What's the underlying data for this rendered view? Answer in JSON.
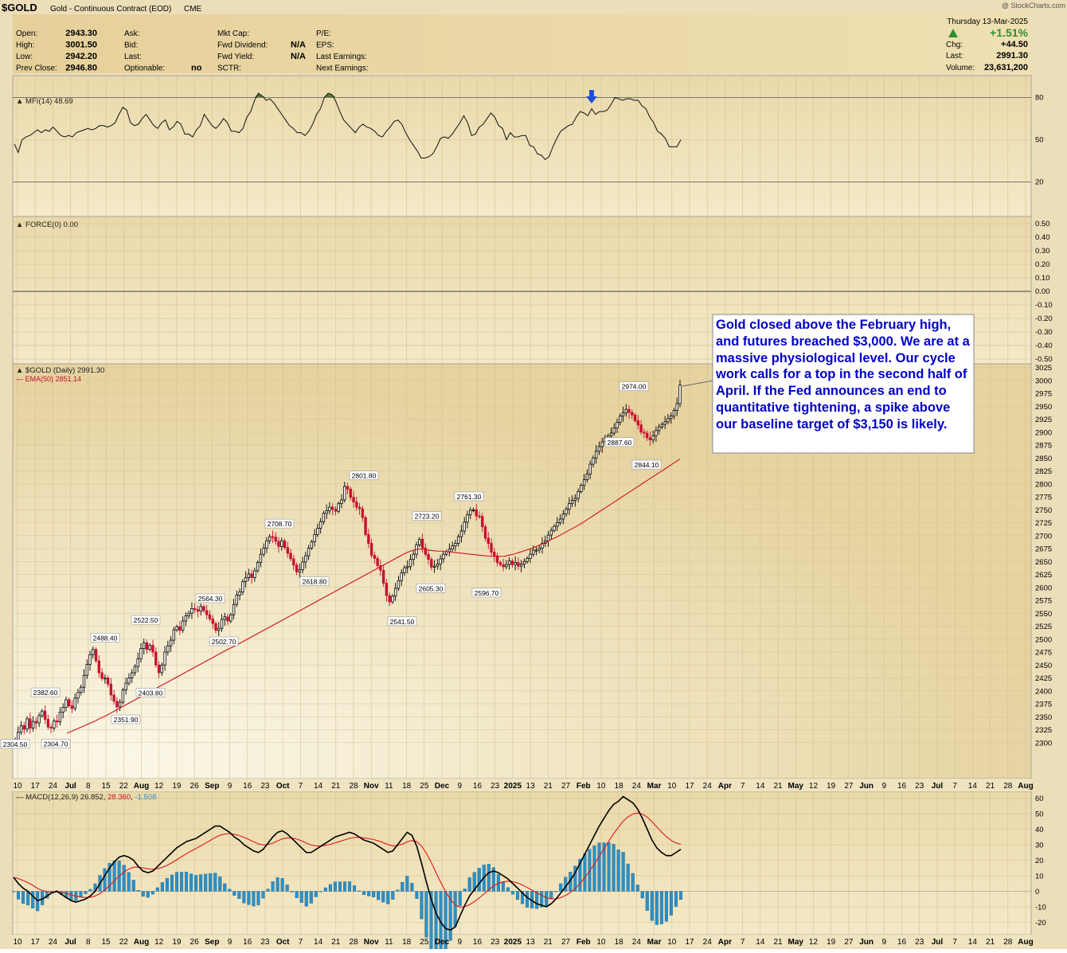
{
  "header": {
    "symbol": "$GOLD",
    "desc": "Gold - Continuous Contract (EOD)",
    "exchange": "CME",
    "source": "@ StockCharts.com",
    "date": "Thursday  13-Mar-2025",
    "pct": "+1.51%",
    "chg_label": "Chg:",
    "chg": "+44.50",
    "last_label": "Last:",
    "last": "2991.30",
    "vol_label": "Volume:",
    "vol": "23,631,200",
    "col1": [
      [
        "Open:",
        "2943.30"
      ],
      [
        "High:",
        "3001.50"
      ],
      [
        "Low:",
        "2942.20"
      ],
      [
        "Prev Close:",
        "2946.80"
      ]
    ],
    "col2": [
      [
        "Ask:",
        ""
      ],
      [
        "Bid:",
        ""
      ],
      [
        "Last:",
        ""
      ],
      [
        "Optionable:",
        "no"
      ]
    ],
    "col3": [
      [
        "Mkt Cap:",
        ""
      ],
      [
        "Fwd Dividend:",
        "N/A"
      ],
      [
        "Fwd Yield:",
        "N/A"
      ],
      [
        "SCTR:",
        ""
      ]
    ],
    "col4": [
      [
        "P/E:",
        ""
      ],
      [
        "EPS:",
        ""
      ],
      [
        "Last Earnings:",
        ""
      ],
      [
        "Next Earnings:",
        ""
      ]
    ]
  },
  "panels": {
    "mfi_label": "MFI(14) 48.69",
    "force_label": "FORCE(0) 0.00",
    "price_label": "$GOLD (Daily) 2991.30",
    "ema_label": "EMA(50) 2851.14",
    "macd_label": "MACD(12,26,9)",
    "macd_v1": "26.852",
    "macd_v2": "28.360",
    "macd_v3": "-1.508"
  },
  "annotation": "Gold closed above the February high, and futures breached $3,000. We are at a massive physiological level. Our cycle work calls for a top in the second half of April. If the Fed announces an end to quantitative tightening, a spike above our baseline target of $3,150 is likely.",
  "colors": {
    "bg_outer": "#e9d5a4",
    "up": "#000000",
    "down": "#c8102e",
    "ema": "#d0101e",
    "hist": "#2d8fc4",
    "annotation_text": "#0000c8",
    "mfi_fill": "#5b7a35",
    "arrow": "#1f4fd8"
  },
  "chart_data": [
    {
      "type": "line",
      "name": "MFI(14)",
      "ylim": [
        0,
        100
      ],
      "y_ticks": [
        20,
        50,
        80
      ],
      "values": [
        47,
        41,
        50,
        52,
        53,
        55,
        57,
        55,
        57,
        56,
        59,
        56,
        53,
        52,
        53,
        52,
        55,
        56,
        57,
        58,
        57,
        58,
        60,
        60,
        59,
        60,
        62,
        68,
        73,
        71,
        62,
        60,
        61,
        65,
        68,
        64,
        60,
        58,
        62,
        64,
        57,
        59,
        63,
        61,
        54,
        54,
        52,
        57,
        60,
        68,
        64,
        60,
        58,
        61,
        65,
        62,
        56,
        56,
        55,
        58,
        66,
        70,
        78,
        83,
        81,
        78,
        79,
        76,
        72,
        68,
        64,
        60,
        58,
        55,
        55,
        53,
        56,
        61,
        68,
        72,
        80,
        83,
        82,
        77,
        70,
        64,
        61,
        58,
        55,
        59,
        61,
        59,
        58,
        56,
        53,
        52,
        56,
        59,
        63,
        64,
        61,
        55,
        50,
        46,
        42,
        37,
        37,
        38,
        40,
        45,
        51,
        52,
        51,
        54,
        58,
        62,
        67,
        62,
        53,
        54,
        59,
        61,
        65,
        69,
        66,
        60,
        58,
        50,
        55,
        52,
        52,
        53,
        53,
        46,
        45,
        40,
        39,
        36,
        38,
        45,
        51,
        56,
        58,
        60,
        61,
        66,
        70,
        69,
        67,
        72,
        68,
        70,
        70,
        71,
        75,
        80,
        79,
        78,
        79,
        79,
        78,
        78,
        74,
        72,
        66,
        62,
        56,
        54,
        51,
        45,
        45,
        45,
        50
      ]
    },
    {
      "type": "line",
      "name": "FORCE(0)",
      "ylim": [
        -0.5,
        0.5
      ],
      "y_ticks": [
        0.5,
        0.4,
        0.3,
        0.2,
        0.1,
        0.0,
        -0.1,
        -0.2,
        -0.3,
        -0.4,
        -0.5
      ],
      "values": [
        0
      ]
    },
    {
      "type": "candlestick",
      "name": "$GOLD (Daily)",
      "ylim": [
        2290,
        3030
      ],
      "y_ticks": [
        3025,
        3000,
        2975,
        2950,
        2925,
        2900,
        2875,
        2850,
        2825,
        2800,
        2775,
        2750,
        2725,
        2700,
        2675,
        2650,
        2625,
        2600,
        2575,
        2550,
        2525,
        2500,
        2475,
        2450,
        2425,
        2400,
        2375,
        2350,
        2325,
        2300
      ],
      "close": [
        2306,
        2320,
        2333,
        2326,
        2346,
        2328,
        2341,
        2338,
        2352,
        2361,
        2345,
        2330,
        2328,
        2342,
        2340,
        2359,
        2368,
        2383,
        2371,
        2366,
        2386,
        2397,
        2407,
        2430,
        2451,
        2470,
        2480,
        2458,
        2435,
        2424,
        2425,
        2413,
        2392,
        2380,
        2369,
        2378,
        2402,
        2415,
        2425,
        2435,
        2447,
        2462,
        2482,
        2493,
        2480,
        2488,
        2475,
        2450,
        2435,
        2450,
        2475,
        2487,
        2498,
        2518,
        2524,
        2517,
        2535,
        2545,
        2550,
        2559,
        2557,
        2554,
        2563,
        2555,
        2547,
        2539,
        2530,
        2517,
        2521,
        2538,
        2543,
        2535,
        2547,
        2567,
        2585,
        2591,
        2611,
        2619,
        2626,
        2619,
        2632,
        2648,
        2664,
        2676,
        2690,
        2698,
        2697,
        2689,
        2679,
        2690,
        2677,
        2666,
        2655,
        2643,
        2630,
        2634,
        2649,
        2661,
        2676,
        2688,
        2702,
        2714,
        2727,
        2743,
        2748,
        2755,
        2751,
        2747,
        2762,
        2769,
        2795,
        2790,
        2774,
        2765,
        2755,
        2752,
        2735,
        2702,
        2685,
        2662,
        2656,
        2642,
        2633,
        2608,
        2584,
        2572,
        2583,
        2598,
        2613,
        2628,
        2638,
        2640,
        2654,
        2664,
        2682,
        2693,
        2676,
        2664,
        2654,
        2639,
        2641,
        2645,
        2655,
        2664,
        2669,
        2674,
        2680,
        2685,
        2698,
        2709,
        2726,
        2740,
        2749,
        2750,
        2738,
        2737,
        2717,
        2695,
        2685,
        2668,
        2661,
        2648,
        2644,
        2640,
        2644,
        2651,
        2644,
        2648,
        2641,
        2645,
        2650,
        2656,
        2664,
        2672,
        2672,
        2676,
        2685,
        2690,
        2701,
        2710,
        2718,
        2725,
        2732,
        2742,
        2751,
        2762,
        2768,
        2772,
        2785,
        2797,
        2808,
        2819,
        2838,
        2850,
        2863,
        2872,
        2881,
        2889,
        2893,
        2898,
        2908,
        2919,
        2931,
        2937,
        2944,
        2938,
        2933,
        2922,
        2914,
        2900,
        2898,
        2889,
        2885,
        2893,
        2903,
        2910,
        2915,
        2920,
        2926,
        2931,
        2942,
        2955,
        2991
      ],
      "labels": [
        {
          "text": "2304.50",
          "value": 2304.5
        },
        {
          "text": "2382.60",
          "value": 2382.6
        },
        {
          "text": "2304.70",
          "value": 2304.7
        },
        {
          "text": "2488.40",
          "value": 2488.4
        },
        {
          "text": "2351.90",
          "value": 2351.9
        },
        {
          "text": "2522.50",
          "value": 2522.5
        },
        {
          "text": "2403.80",
          "value": 2403.8
        },
        {
          "text": "2564.30",
          "value": 2564.3
        },
        {
          "text": "2502.70",
          "value": 2502.7
        },
        {
          "text": "2708.70",
          "value": 2708.7
        },
        {
          "text": "2618.80",
          "value": 2618.8
        },
        {
          "text": "2801.80",
          "value": 2801.8
        },
        {
          "text": "2541.50",
          "value": 2541.5
        },
        {
          "text": "2723.20",
          "value": 2723.2
        },
        {
          "text": "2605.30",
          "value": 2605.3
        },
        {
          "text": "2761.30",
          "value": 2761.3
        },
        {
          "text": "2596.70",
          "value": 2596.7
        },
        {
          "text": "2887.60",
          "value": 2887.6
        },
        {
          "text": "2974.00",
          "value": 2974.0
        },
        {
          "text": "2844.10",
          "value": 2844.1
        }
      ]
    },
    {
      "type": "line",
      "name": "EMA(50)",
      "values": [
        2318,
        2322,
        2326,
        2330,
        2334,
        2338,
        2342,
        2347,
        2351,
        2356,
        2361,
        2366,
        2371,
        2376,
        2381,
        2386,
        2391,
        2396,
        2401,
        2406,
        2411,
        2416,
        2421,
        2426,
        2431,
        2436,
        2441,
        2446,
        2451,
        2456,
        2461,
        2466,
        2471,
        2476,
        2481,
        2485,
        2490,
        2495,
        2500,
        2505,
        2510,
        2515,
        2520,
        2525,
        2530,
        2535,
        2540,
        2545,
        2550,
        2555,
        2560,
        2565,
        2570,
        2575,
        2580,
        2585,
        2590,
        2595,
        2600,
        2605,
        2610,
        2615,
        2620,
        2625,
        2630,
        2635,
        2640,
        2645,
        2650,
        2655,
        2660,
        2665,
        2669,
        2672,
        2674,
        2674,
        2672,
        2671,
        2670,
        2670,
        2669,
        2668,
        2667,
        2666,
        2665,
        2664,
        2663,
        2662,
        2661,
        2660,
        2660,
        2660,
        2660,
        2662,
        2664,
        2667,
        2670,
        2673,
        2676,
        2680,
        2684,
        2688,
        2693,
        2697,
        2702,
        2707,
        2712,
        2717,
        2722,
        2728,
        2734,
        2740,
        2746,
        2752,
        2758,
        2764,
        2770,
        2776,
        2782,
        2788,
        2794,
        2800,
        2806,
        2812,
        2818,
        2824,
        2830,
        2836,
        2842,
        2848
      ]
    },
    {
      "type": "bar",
      "name": "MACD(12,26,9)",
      "ylim": [
        -25,
        65
      ],
      "y_ticks": [
        60,
        50,
        40,
        30,
        20,
        10,
        0,
        -10,
        -20
      ],
      "macd": [
        9,
        5,
        2,
        0,
        -3,
        -6,
        -5,
        -3,
        -1,
        0,
        -2,
        -4,
        -6,
        -7,
        -6,
        -5,
        -3,
        0,
        5,
        10,
        15,
        19,
        22,
        23,
        22,
        20,
        16,
        13,
        12,
        13,
        16,
        19,
        22,
        25,
        28,
        30,
        32,
        33,
        34,
        36,
        38,
        40,
        42,
        42,
        40,
        38,
        35,
        33,
        30,
        28,
        26,
        25,
        27,
        31,
        35,
        38,
        39,
        37,
        34,
        31,
        28,
        25,
        25,
        27,
        29,
        31,
        33,
        35,
        36,
        37,
        38,
        37,
        35,
        33,
        32,
        31,
        29,
        27,
        25,
        26,
        30,
        34,
        38,
        36,
        29,
        18,
        6,
        -5,
        -14,
        -20,
        -24,
        -25,
        -23,
        -16,
        -9,
        -3,
        1,
        5,
        9,
        12,
        13,
        12,
        10,
        8,
        5,
        2,
        -1,
        -4,
        -6,
        -8,
        -9,
        -10,
        -8,
        -5,
        -1,
        3,
        7,
        12,
        18,
        24,
        30,
        36,
        42,
        47,
        52,
        56,
        58,
        61,
        59,
        57,
        53,
        47,
        40,
        33,
        28,
        25,
        23,
        23,
        25,
        27
      ]
    }
  ],
  "x_axis": [
    {
      "label": "10",
      "bold": false
    },
    {
      "label": "17",
      "bold": false
    },
    {
      "label": "24",
      "bold": false
    },
    {
      "label": "Jul",
      "bold": true
    },
    {
      "label": "8",
      "bold": false
    },
    {
      "label": "15",
      "bold": false
    },
    {
      "label": "22",
      "bold": false
    },
    {
      "label": "Aug",
      "bold": true
    },
    {
      "label": "12",
      "bold": false
    },
    {
      "label": "19",
      "bold": false
    },
    {
      "label": "26",
      "bold": false
    },
    {
      "label": "Sep",
      "bold": true
    },
    {
      "label": "9",
      "bold": false
    },
    {
      "label": "16",
      "bold": false
    },
    {
      "label": "23",
      "bold": false
    },
    {
      "label": "Oct",
      "bold": true
    },
    {
      "label": "7",
      "bold": false
    },
    {
      "label": "14",
      "bold": false
    },
    {
      "label": "21",
      "bold": false
    },
    {
      "label": "28",
      "bold": false
    },
    {
      "label": "Nov",
      "bold": true
    },
    {
      "label": "11",
      "bold": false
    },
    {
      "label": "18",
      "bold": false
    },
    {
      "label": "25",
      "bold": false
    },
    {
      "label": "Dec",
      "bold": true
    },
    {
      "label": "9",
      "bold": false
    },
    {
      "label": "16",
      "bold": false
    },
    {
      "label": "23",
      "bold": false
    },
    {
      "label": "2025",
      "bold": true
    },
    {
      "label": "13",
      "bold": false
    },
    {
      "label": "21",
      "bold": false
    },
    {
      "label": "27",
      "bold": false
    },
    {
      "label": "Feb",
      "bold": true
    },
    {
      "label": "10",
      "bold": false
    },
    {
      "label": "18",
      "bold": false
    },
    {
      "label": "24",
      "bold": false
    },
    {
      "label": "Mar",
      "bold": true
    },
    {
      "label": "10",
      "bold": false
    },
    {
      "label": "17",
      "bold": false
    },
    {
      "label": "24",
      "bold": false
    },
    {
      "label": "Apr",
      "bold": true
    },
    {
      "label": "7",
      "bold": false
    },
    {
      "label": "14",
      "bold": false
    },
    {
      "label": "21",
      "bold": false
    },
    {
      "label": "May",
      "bold": true
    },
    {
      "label": "12",
      "bold": false
    },
    {
      "label": "19",
      "bold": false
    },
    {
      "label": "27",
      "bold": false
    },
    {
      "label": "Jun",
      "bold": true
    },
    {
      "label": "9",
      "bold": false
    },
    {
      "label": "16",
      "bold": false
    },
    {
      "label": "23",
      "bold": false
    },
    {
      "label": "Jul",
      "bold": true
    },
    {
      "label": "7",
      "bold": false
    },
    {
      "label": "14",
      "bold": false
    },
    {
      "label": "21",
      "bold": false
    },
    {
      "label": "28",
      "bold": false
    },
    {
      "label": "Aug",
      "bold": true
    }
  ]
}
